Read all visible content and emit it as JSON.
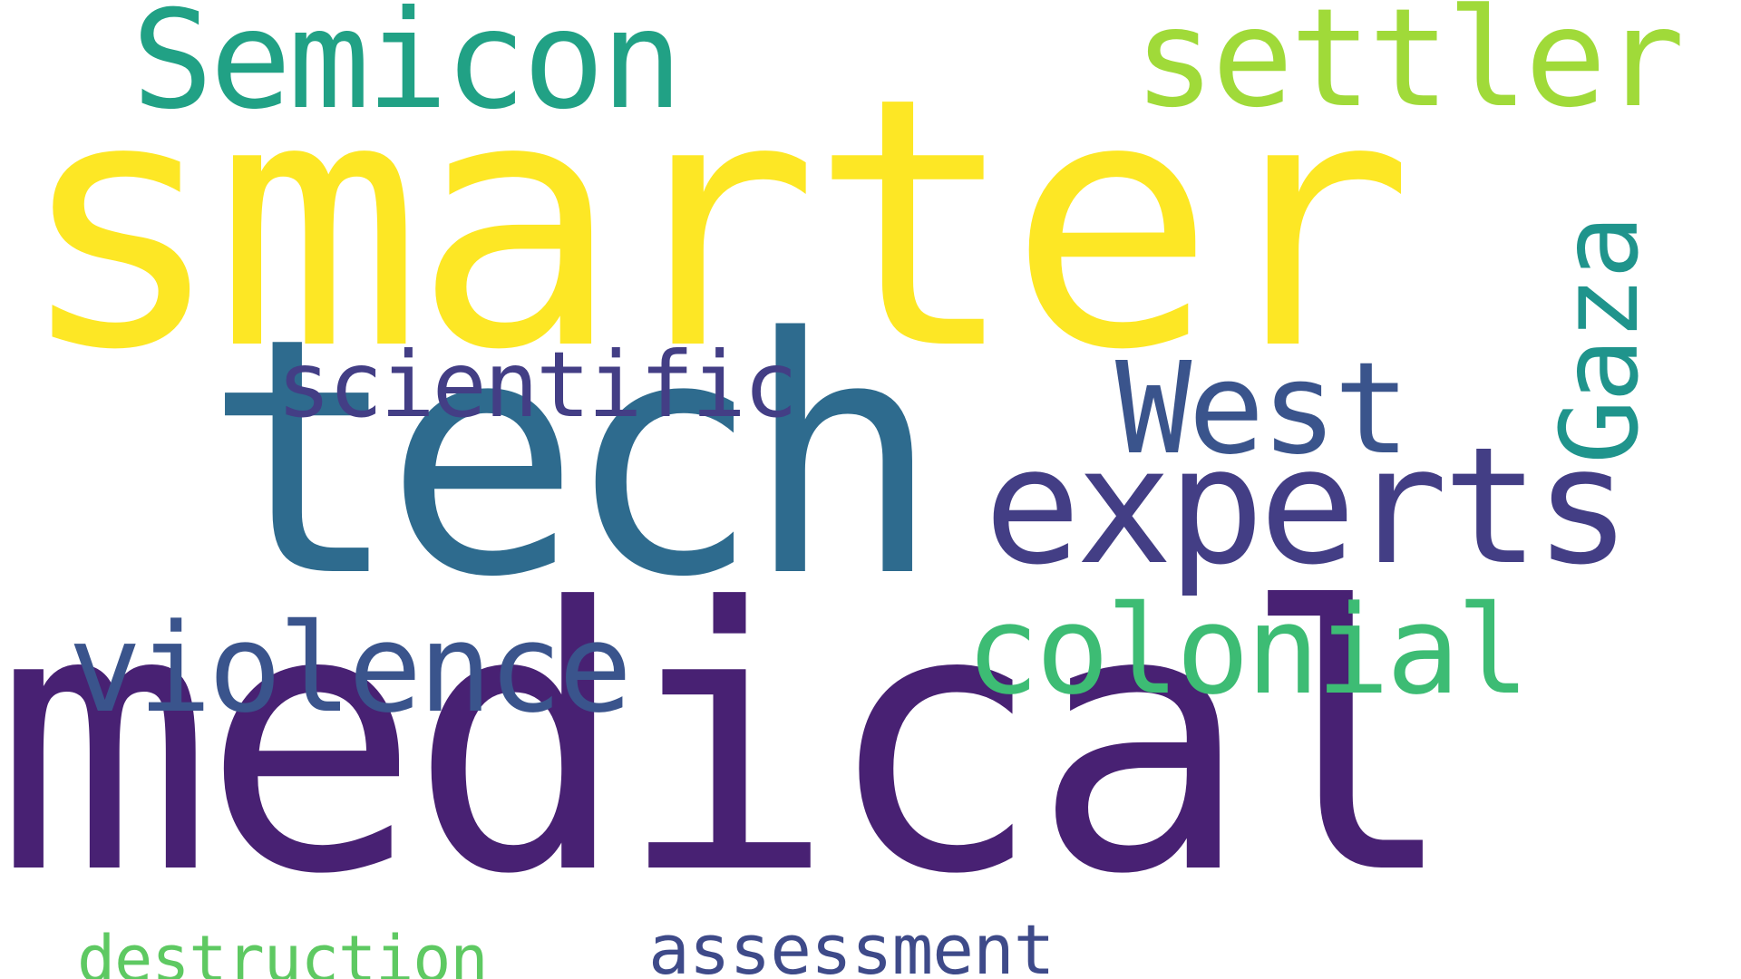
{
  "background_color": "#ffffff",
  "words": [
    {
      "key": "smarter",
      "text": "smarter",
      "color": "#fde725"
    },
    {
      "key": "medical",
      "text": "medical",
      "color": "#482173"
    },
    {
      "key": "tech",
      "text": "tech",
      "color": "#2e6b8e"
    },
    {
      "key": "experts",
      "text": "experts",
      "color": "#433e85"
    },
    {
      "key": "Semicon",
      "text": "Semicon",
      "color": "#21a185"
    },
    {
      "key": "settler",
      "text": "settler",
      "color": "#a0da39"
    },
    {
      "key": "West",
      "text": "West",
      "color": "#3a548c"
    },
    {
      "key": "scientific",
      "text": "scientific",
      "color": "#433e85"
    },
    {
      "key": "violence",
      "text": "violence",
      "color": "#3a548c"
    },
    {
      "key": "colonial",
      "text": "colonial",
      "color": "#3dbc74"
    },
    {
      "key": "Gaza",
      "text": "Gaza",
      "color": "#1f948c"
    },
    {
      "key": "destruction",
      "text": "destruction",
      "color": "#5ec962"
    },
    {
      "key": "assessment",
      "text": "assessment",
      "color": "#3e4a89"
    }
  ]
}
